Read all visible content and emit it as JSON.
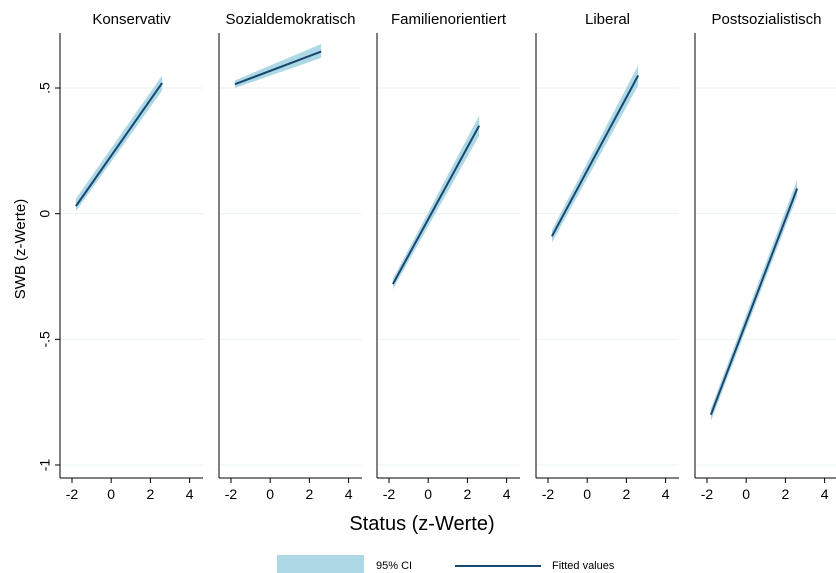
{
  "chart_data": {
    "type": "line",
    "xlabel": "Status (z-Werte)",
    "ylabel": "SWB (z-Werte)",
    "xlim": [
      -2.1,
      4.6
    ],
    "ylim": [
      -1.05,
      0.73
    ],
    "xticks": [
      -2,
      0,
      2,
      4
    ],
    "yticks": [
      0.5,
      0,
      -0.5,
      -1
    ],
    "ytick_labels": [
      ".5",
      "0",
      "-.5",
      "-1"
    ],
    "grid": true,
    "legend": {
      "placement": "bottom-center",
      "entries": [
        {
          "label": "95% CI",
          "color": "#add8e6"
        },
        {
          "label": "Fitted values",
          "color": "#1a476f"
        }
      ]
    },
    "panels": [
      {
        "name": "Konservativ",
        "x": [
          -1.8,
          2.6
        ],
        "fitted": [
          0.03,
          0.52
        ],
        "ci_lower": [
          0.01,
          0.49
        ],
        "ci_upper": [
          0.06,
          0.55
        ]
      },
      {
        "name": "Sozialdemokratisch",
        "x": [
          -1.8,
          2.6
        ],
        "fitted": [
          0.515,
          0.645
        ],
        "ci_lower": [
          0.5,
          0.62
        ],
        "ci_upper": [
          0.53,
          0.675
        ]
      },
      {
        "name": "Familienorientiert",
        "x": [
          -1.8,
          2.6
        ],
        "fitted": [
          -0.28,
          0.35
        ],
        "ci_lower": [
          -0.3,
          0.31
        ],
        "ci_upper": [
          -0.26,
          0.39
        ]
      },
      {
        "name": "Liberal",
        "x": [
          -1.8,
          2.6
        ],
        "fitted": [
          -0.09,
          0.55
        ],
        "ci_lower": [
          -0.115,
          0.51
        ],
        "ci_upper": [
          -0.065,
          0.59
        ]
      },
      {
        "name": "Postsozialistisch",
        "x": [
          -1.8,
          2.6
        ],
        "fitted": [
          -0.8,
          0.1
        ],
        "ci_lower": [
          -0.825,
          0.07
        ],
        "ci_upper": [
          -0.775,
          0.135
        ]
      }
    ]
  }
}
